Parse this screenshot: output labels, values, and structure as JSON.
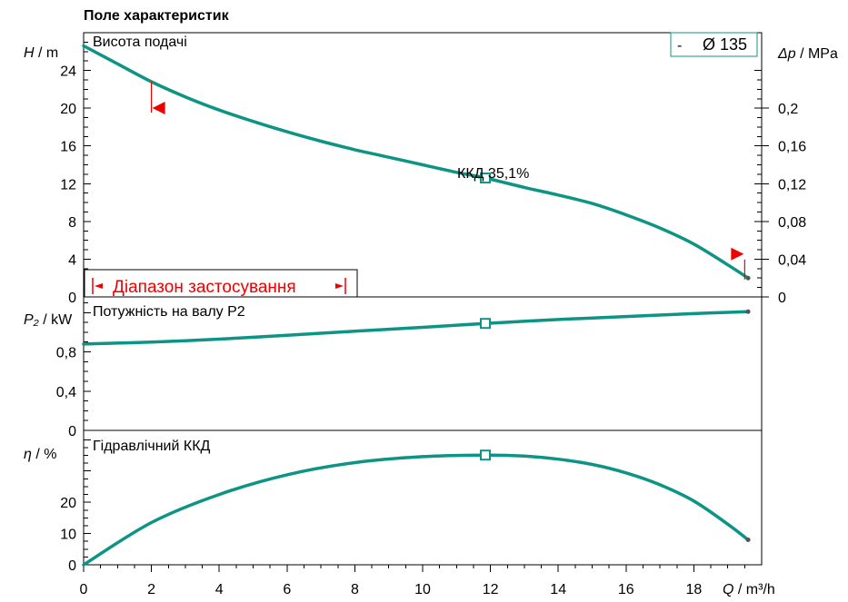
{
  "chart_data": {
    "type": "line",
    "title": "Поле характеристик",
    "colors": {
      "curve": "#0e9484",
      "range": "#ee0000"
    },
    "xlabel": "Q / m³/h",
    "xlim": [
      0,
      20
    ],
    "xticks": [
      0,
      2,
      4,
      6,
      8,
      10,
      12,
      14,
      16,
      18
    ],
    "legend": {
      "symbol": "-",
      "label": "Ø 135",
      "placement": "top-right"
    },
    "operating_point": {
      "q": 11.85,
      "label": "ККД  35,1%"
    },
    "application_range": {
      "label": "Діапазон застосування",
      "q_min": 2,
      "q_max": 19.5
    },
    "panels": [
      {
        "id": "head",
        "name": "Висота подачі",
        "ylabel": "H / m",
        "ylim": [
          0,
          28
        ],
        "yticks": [
          0,
          4,
          8,
          12,
          16,
          20,
          24
        ],
        "right_axis": {
          "label": "Δp / MPa",
          "ticks": [
            0,
            0.04,
            0.08,
            0.12,
            0.16,
            0.2
          ],
          "tick_labels": [
            "0",
            "0,04",
            "0,08",
            "0,12",
            "0,16",
            "0,2"
          ]
        },
        "series": [
          {
            "x": [
              0,
              1,
              2,
              3,
              4,
              5,
              6,
              7,
              8,
              9,
              10,
              11,
              11.85,
              13,
              14,
              15,
              16,
              17,
              18,
              19,
              19.6
            ],
            "y": [
              26.6,
              24.7,
              22.8,
              21.2,
              19.8,
              18.6,
              17.5,
              16.5,
              15.6,
              14.8,
              14.0,
              13.2,
              12.6,
              11.6,
              10.8,
              9.9,
              8.7,
              7.3,
              5.6,
              3.4,
              2.0
            ]
          }
        ]
      },
      {
        "id": "power",
        "name": "Потужність на валу P2",
        "ylabel": "P₂ / kW",
        "ylim": [
          0,
          1.36
        ],
        "yticks": [
          0,
          0.4,
          0.8
        ],
        "tick_labels": [
          "0",
          "0,4",
          "0,8"
        ],
        "series": [
          {
            "x": [
              0,
              2,
              4,
              6,
              8,
              10,
              11.85,
              14,
              16,
              18,
              19.6
            ],
            "y": [
              0.88,
              0.9,
              0.93,
              0.97,
              1.01,
              1.05,
              1.09,
              1.13,
              1.16,
              1.19,
              1.21
            ]
          }
        ]
      },
      {
        "id": "efficiency",
        "name": "Гідравлічний ККД",
        "ylabel": "η / %",
        "ylim": [
          0,
          43
        ],
        "yticks": [
          0,
          10,
          20
        ],
        "series": [
          {
            "x": [
              0,
              2,
              4,
              6,
              8,
              10,
              11.85,
              13,
              14,
              15,
              16,
              17,
              18,
              19,
              19.6
            ],
            "y": [
              0,
              13.5,
              22.5,
              28.8,
              32.7,
              34.6,
              35.1,
              34.8,
              33.8,
              32.1,
              29.4,
              25.6,
              20.4,
              13.0,
              8.0
            ]
          }
        ]
      }
    ]
  }
}
